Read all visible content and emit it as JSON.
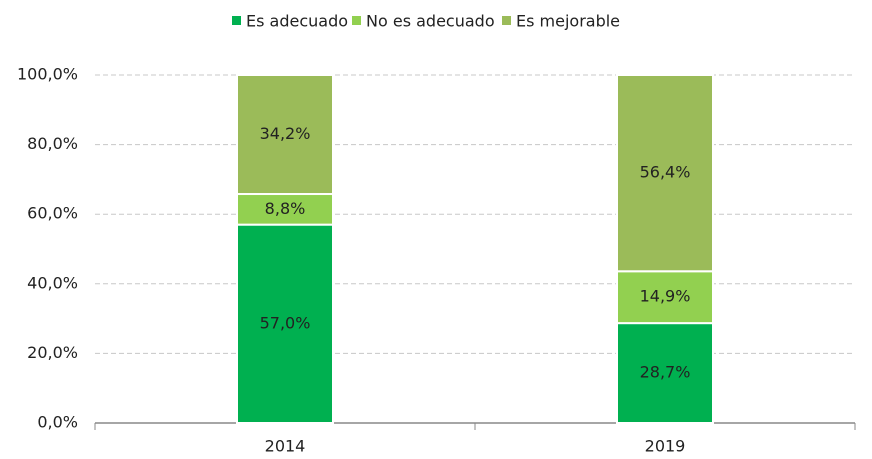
{
  "chart_data": {
    "type": "stacked_bar",
    "categories": [
      "2014",
      "2019"
    ],
    "series": [
      {
        "name": "Es adecuado",
        "color": "#00b050",
        "values": [
          57.0,
          28.7
        ],
        "value_labels": [
          "57,0%",
          "28,7%"
        ]
      },
      {
        "name": "No es adecuado",
        "color": "#92d050",
        "values": [
          8.8,
          14.9
        ],
        "value_labels": [
          "8,8%",
          "14,9%"
        ]
      },
      {
        "name": "Es mejorable",
        "color": "#9bbb59",
        "values": [
          34.2,
          56.4
        ],
        "value_labels": [
          "34,2%",
          "56,4%"
        ]
      }
    ],
    "ylim": [
      0,
      100
    ],
    "yticks": [
      {
        "value": 0,
        "label": "0,0%"
      },
      {
        "value": 20,
        "label": "20,0%"
      },
      {
        "value": 40,
        "label": "40,0%"
      },
      {
        "value": 60,
        "label": "60,0%"
      },
      {
        "value": 80,
        "label": "80,0%"
      },
      {
        "value": 100,
        "label": "100,0%"
      }
    ],
    "grid": true,
    "legend": "top"
  }
}
